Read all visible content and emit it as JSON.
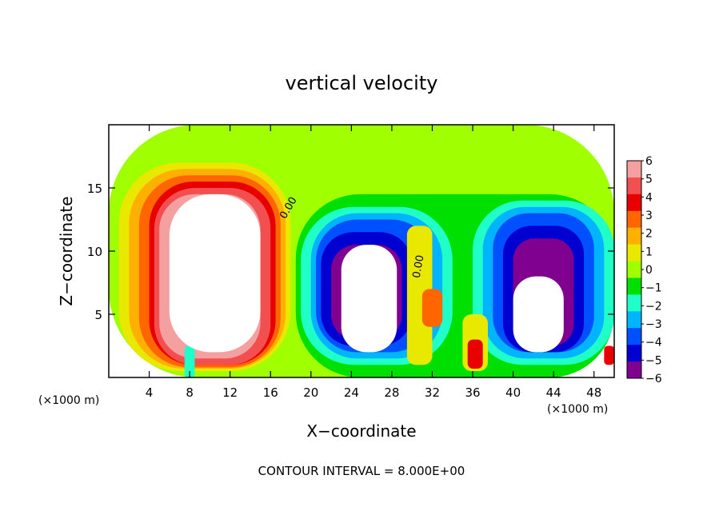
{
  "chart_data": {
    "type": "heatmap",
    "title": "vertical velocity",
    "xlabel": "X−coordinate",
    "ylabel": "Z−coordinate",
    "x_unit": "(×1000 m)",
    "xlim": [
      0,
      50
    ],
    "ylim": [
      0,
      20
    ],
    "x_ticks": [
      4,
      8,
      12,
      16,
      20,
      24,
      28,
      32,
      36,
      40,
      44,
      48
    ],
    "y_ticks": [
      5,
      10,
      15
    ],
    "footer": "CONTOUR INTERVAL = 8.000E+00",
    "contour_labels": [
      "0.00",
      "0.00"
    ],
    "colorbar": {
      "levels": [
        6,
        5,
        4,
        3,
        2,
        1,
        0,
        -1,
        -2,
        -3,
        -4,
        -5,
        -6
      ],
      "labels": [
        "6",
        "5",
        "4",
        "3",
        "2",
        "1",
        "0",
        "−1",
        "−2",
        "−3",
        "−4",
        "−5",
        "−6"
      ],
      "colors": [
        "#f4a0a0",
        "#f25050",
        "#e80000",
        "#ff6600",
        "#ffb000",
        "#e8e800",
        "#a0ff00",
        "#00e000",
        "#20ffc8",
        "#00b4ff",
        "#0050ff",
        "#0000d0",
        "#800090"
      ]
    },
    "cells": [
      {
        "x0": 0,
        "x1": 50,
        "z0": 0,
        "z1": 20,
        "level": 0
      },
      {
        "x0": 1,
        "x1": 18,
        "z0": 0.5,
        "z1": 17,
        "level": 1
      },
      {
        "x0": 2,
        "x1": 17.5,
        "z0": 0.7,
        "z1": 16.5,
        "level": 2
      },
      {
        "x0": 3,
        "x1": 17,
        "z0": 0.8,
        "z1": 16,
        "level": 3
      },
      {
        "x0": 4,
        "x1": 16.5,
        "z0": 1,
        "z1": 15.5,
        "level": 4
      },
      {
        "x0": 4.5,
        "x1": 16,
        "z0": 1,
        "z1": 15,
        "level": 5
      },
      {
        "x0": 5,
        "x1": 15,
        "z0": 1.5,
        "z1": 14.5,
        "level": 6
      },
      {
        "x0": 18.5,
        "x1": 50,
        "z0": 0,
        "z1": 14.5,
        "level": -1
      },
      {
        "x0": 19,
        "x1": 34,
        "z0": 1,
        "z1": 13.5,
        "level": -2
      },
      {
        "x0": 20,
        "x1": 33,
        "z0": 1.5,
        "z1": 13,
        "level": -3
      },
      {
        "x0": 20.5,
        "x1": 32,
        "z0": 2,
        "z1": 12.5,
        "level": -4
      },
      {
        "x0": 21,
        "x1": 30,
        "z0": 2.5,
        "z1": 11.5,
        "level": -5
      },
      {
        "x0": 22,
        "x1": 29,
        "z0": 3,
        "z1": 10.5,
        "level": -6
      },
      {
        "x0": 36,
        "x1": 50,
        "z0": 1,
        "z1": 14,
        "level": -2
      },
      {
        "x0": 37,
        "x1": 49,
        "z0": 1.5,
        "z1": 13.5,
        "level": -3
      },
      {
        "x0": 38,
        "x1": 48,
        "z0": 2,
        "z1": 13,
        "level": -4
      },
      {
        "x0": 39,
        "x1": 47,
        "z0": 2,
        "z1": 12,
        "level": -5
      },
      {
        "x0": 40,
        "x1": 46,
        "z0": 2.5,
        "z1": 11,
        "level": -6
      },
      {
        "x0": 29.5,
        "x1": 32,
        "z0": 1,
        "z1": 12,
        "level": 1
      },
      {
        "x0": 31,
        "x1": 33,
        "z0": 4,
        "z1": 7,
        "level": 3
      },
      {
        "x0": 35,
        "x1": 37.5,
        "z0": 0.5,
        "z1": 5,
        "level": 1
      },
      {
        "x0": 35.5,
        "x1": 37,
        "z0": 0.7,
        "z1": 3,
        "level": 4
      },
      {
        "x0": 7.5,
        "x1": 8.5,
        "z0": 0,
        "z1": 2.5,
        "level": -2
      },
      {
        "x0": 49,
        "x1": 50,
        "z0": 1,
        "z1": 2.5,
        "level": 4
      }
    ],
    "blanks": [
      {
        "x0": 6,
        "x1": 15,
        "z0": 2,
        "z1": 14.5
      },
      {
        "x0": 23,
        "x1": 28.5,
        "z0": 2,
        "z1": 10.5
      },
      {
        "x0": 40,
        "x1": 45,
        "z0": 2,
        "z1": 8
      }
    ]
  }
}
